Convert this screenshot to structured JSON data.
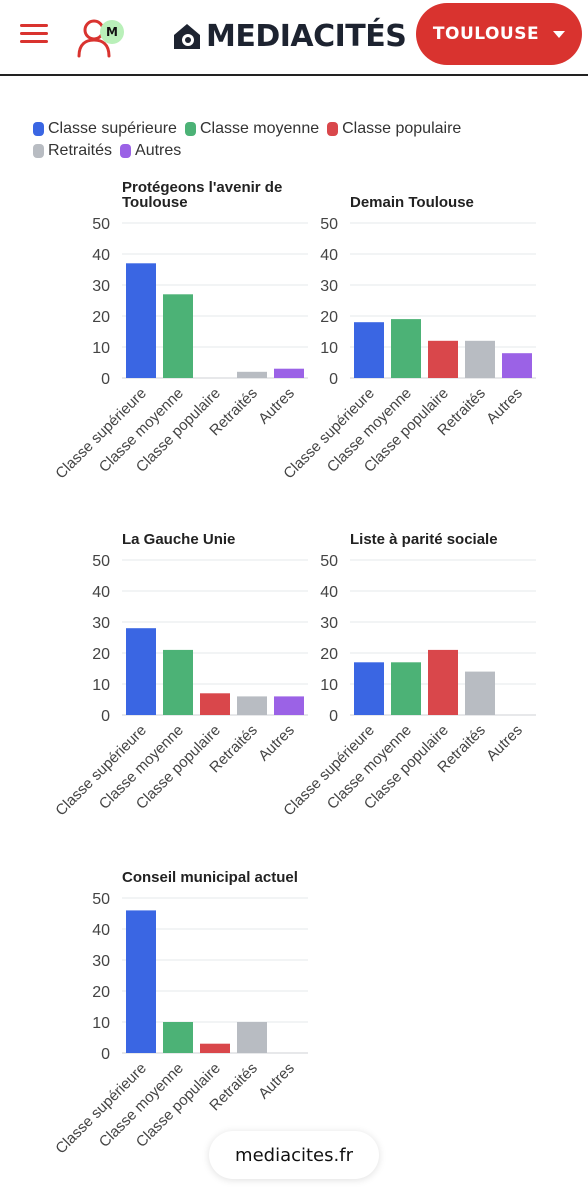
{
  "header": {
    "user_badge": "M",
    "logo_text": "MEDIACITÉS",
    "city_button_label": "TOULOUSE"
  },
  "legend": [
    {
      "label": "Classe supérieure",
      "color": "#3a66e3"
    },
    {
      "label": "Classe moyenne",
      "color": "#4cb276"
    },
    {
      "label": "Classe populaire",
      "color": "#d9474b"
    },
    {
      "label": "Retraités",
      "color": "#b8bcc2"
    },
    {
      "label": "Autres",
      "color": "#9b62e6"
    }
  ],
  "chart_data": [
    {
      "type": "bar",
      "title": "Protégeons l'avenir de Toulouse",
      "categories": [
        "Classe supérieure",
        "Classe moyenne",
        "Classe populaire",
        "Retraités",
        "Autres"
      ],
      "values": [
        37,
        27,
        0,
        2,
        3
      ],
      "ylim": [
        0,
        50
      ],
      "yticks": [
        0,
        10,
        20,
        30,
        40,
        50
      ],
      "grid": true
    },
    {
      "type": "bar",
      "title": "Demain Toulouse",
      "categories": [
        "Classe supérieure",
        "Classe moyenne",
        "Classe populaire",
        "Retraités",
        "Autres"
      ],
      "values": [
        18,
        19,
        12,
        12,
        8
      ],
      "ylim": [
        0,
        50
      ],
      "yticks": [
        0,
        10,
        20,
        30,
        40,
        50
      ],
      "grid": true
    },
    {
      "type": "bar",
      "title": "La Gauche Unie",
      "categories": [
        "Classe supérieure",
        "Classe moyenne",
        "Classe populaire",
        "Retraités",
        "Autres"
      ],
      "values": [
        28,
        21,
        7,
        6,
        6
      ],
      "ylim": [
        0,
        50
      ],
      "yticks": [
        0,
        10,
        20,
        30,
        40,
        50
      ],
      "grid": true
    },
    {
      "type": "bar",
      "title": "Liste à parité sociale",
      "categories": [
        "Classe supérieure",
        "Classe moyenne",
        "Classe populaire",
        "Retraités",
        "Autres"
      ],
      "values": [
        17,
        17,
        21,
        14,
        0
      ],
      "ylim": [
        0,
        50
      ],
      "yticks": [
        0,
        10,
        20,
        30,
        40,
        50
      ],
      "grid": true
    },
    {
      "type": "bar",
      "title": "Conseil municipal actuel",
      "categories": [
        "Classe supérieure",
        "Classe moyenne",
        "Classe populaire",
        "Retraités",
        "Autres"
      ],
      "values": [
        46,
        10,
        3,
        10,
        0
      ],
      "ylim": [
        0,
        50
      ],
      "yticks": [
        0,
        10,
        20,
        30,
        40,
        50
      ],
      "grid": true
    }
  ],
  "footer": {
    "site": "mediacites.fr"
  }
}
